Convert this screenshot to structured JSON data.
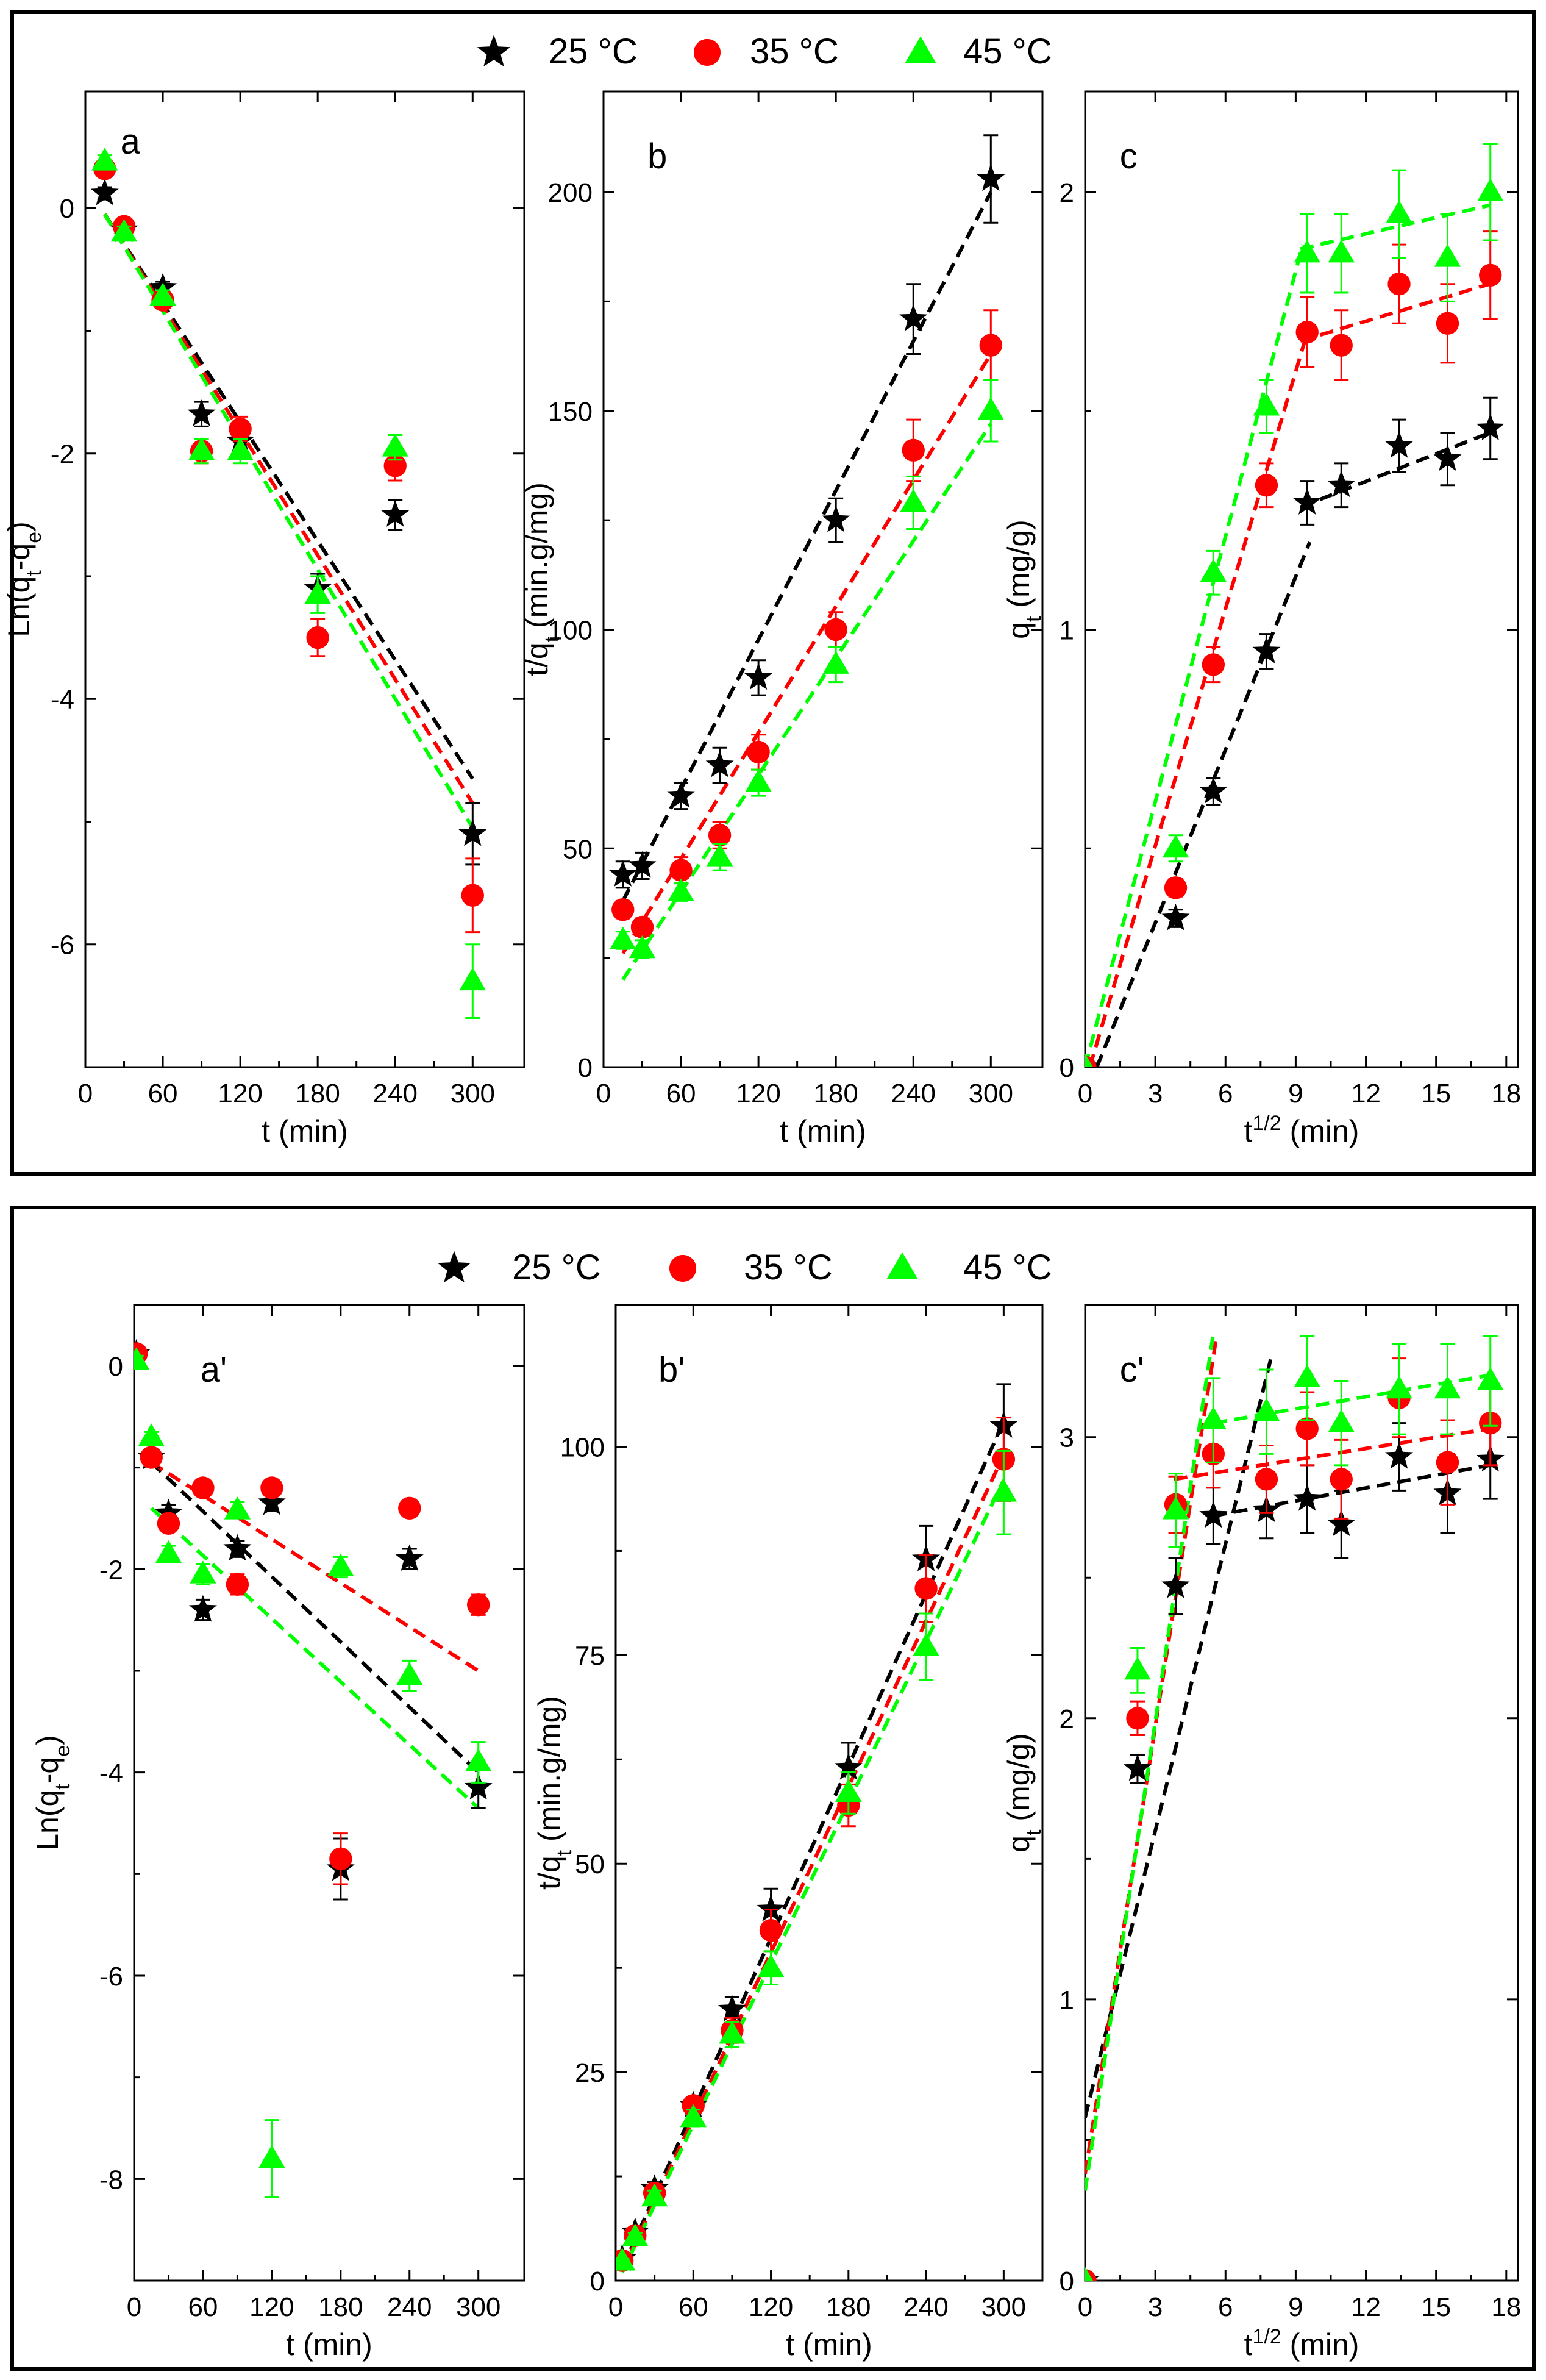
{
  "legend": [
    {
      "name": "25 °C",
      "color": "#000000",
      "marker": "star"
    },
    {
      "name": "35 °C",
      "color": "#ff0000",
      "marker": "circle"
    },
    {
      "name": "45 °C",
      "color": "#00ff00",
      "marker": "triangle"
    }
  ],
  "chart_data": [
    {
      "id": "a",
      "type": "scatter",
      "label": "a",
      "group": "top",
      "ylabel": "Ln(q<sub>t</sub>-q<sub>e</sub>)",
      "xlabel": "t (min)",
      "xlim": [
        0,
        340
      ],
      "ylim": [
        -7.0,
        0.95
      ],
      "xticks": [
        0,
        60,
        120,
        180,
        240,
        300
      ],
      "yticks": [
        0,
        -2,
        -4,
        -6
      ],
      "x": [
        15,
        30,
        60,
        90,
        120,
        180,
        240,
        300
      ],
      "series": [
        {
          "name": "25 °C",
          "values": [
            0.12,
            -0.18,
            -0.65,
            -1.68,
            -1.9,
            -3.1,
            -2.5,
            -5.1
          ],
          "err": [
            0.05,
            0.05,
            0.05,
            0.1,
            0.1,
            0.12,
            0.12,
            0.25
          ],
          "fit": [
            [
              15,
              -0.05
            ],
            [
              300,
              -4.65
            ]
          ]
        },
        {
          "name": "35 °C",
          "values": [
            0.32,
            -0.15,
            -0.75,
            -1.98,
            -1.8,
            -3.5,
            -2.1,
            -5.6
          ],
          "err": [
            0.05,
            0.05,
            0.05,
            0.1,
            0.1,
            0.15,
            0.12,
            0.3
          ],
          "fit": [
            [
              15,
              -0.05
            ],
            [
              300,
              -4.85
            ]
          ]
        },
        {
          "name": "45 °C",
          "values": [
            0.38,
            -0.2,
            -0.72,
            -1.98,
            -1.98,
            -3.15,
            -1.95,
            -6.3
          ],
          "err": [
            0.05,
            0.05,
            0.05,
            0.1,
            0.1,
            0.15,
            0.1,
            0.3
          ],
          "fit": [
            [
              15,
              -0.05
            ],
            [
              300,
              -5.05
            ]
          ]
        }
      ]
    },
    {
      "id": "b",
      "type": "scatter",
      "label": "b",
      "group": "top",
      "ylabel": "t/q<sub>t</sub> (min.g/mg)",
      "xlabel": "t (min)",
      "xlim": [
        0,
        340
      ],
      "ylim": [
        0,
        223
      ],
      "xticks": [
        0,
        60,
        120,
        180,
        240,
        300
      ],
      "yticks": [
        0,
        50,
        100,
        150,
        200
      ],
      "x": [
        15,
        30,
        60,
        90,
        120,
        180,
        240,
        300
      ],
      "series": [
        {
          "name": "25 °C",
          "values": [
            44,
            46,
            62,
            69,
            89,
            125,
            171,
            203
          ],
          "err": [
            3,
            3,
            3,
            4,
            4,
            5,
            8,
            10
          ],
          "fit": [
            [
              15,
              38
            ],
            [
              300,
              200
            ]
          ]
        },
        {
          "name": "35 °C",
          "values": [
            36,
            32,
            45,
            53,
            72,
            100,
            141,
            165
          ],
          "err": [
            2,
            2,
            3,
            3,
            4,
            4,
            7,
            8
          ],
          "fit": [
            [
              15,
              26
            ],
            [
              300,
              163
            ]
          ]
        },
        {
          "name": "45 °C",
          "values": [
            29,
            27,
            40,
            48,
            65,
            92,
            129,
            150
          ],
          "err": [
            2,
            2,
            2,
            3,
            3,
            4,
            6,
            7
          ],
          "fit": [
            [
              15,
              20
            ],
            [
              300,
              147
            ]
          ]
        }
      ]
    },
    {
      "id": "c",
      "type": "scatter",
      "label": "c",
      "group": "top",
      "ylabel": "q<sub>t</sub> (mg/g)",
      "xlabel": "t<sup>1/2</sup> (min)",
      "xlim": [
        0,
        18.5
      ],
      "ylim": [
        0,
        2.23
      ],
      "xticks": [
        0,
        3,
        6,
        9,
        12,
        15,
        18
      ],
      "yticks": [
        0,
        1,
        2
      ],
      "x": [
        0,
        3.87,
        5.48,
        7.75,
        9.49,
        10.95,
        13.42,
        15.49,
        17.32
      ],
      "series": [
        {
          "name": "25 °C",
          "values": [
            0,
            0.34,
            0.63,
            0.95,
            1.29,
            1.33,
            1.42,
            1.39,
            1.46
          ],
          "err": [
            0,
            0.02,
            0.03,
            0.04,
            0.05,
            0.05,
            0.06,
            0.06,
            0.07
          ],
          "fit": [
            [
              0.5,
              0
            ],
            [
              9.6,
              1.2
            ]
          ],
          "fit2": [
            [
              9.2,
              1.28
            ],
            [
              17.3,
              1.45
            ]
          ]
        },
        {
          "name": "35 °C",
          "values": [
            0,
            0.41,
            0.92,
            1.33,
            1.68,
            1.65,
            1.79,
            1.7,
            1.81
          ],
          "err": [
            0,
            0.02,
            0.04,
            0.05,
            0.08,
            0.08,
            0.09,
            0.09,
            0.1
          ],
          "fit": [
            [
              0.2,
              0
            ],
            [
              9.5,
              1.68
            ]
          ],
          "fit2": [
            [
              9.2,
              1.66
            ],
            [
              17.3,
              1.79
            ]
          ]
        },
        {
          "name": "45 °C",
          "values": [
            0,
            0.5,
            1.13,
            1.51,
            1.86,
            1.86,
            1.95,
            1.85,
            2.0
          ],
          "err": [
            0,
            0.03,
            0.05,
            0.06,
            0.09,
            0.09,
            0.1,
            0.1,
            0.11
          ],
          "fit": [
            [
              0,
              0
            ],
            [
              9.3,
              1.88
            ]
          ],
          "fit2": [
            [
              9.2,
              1.87
            ],
            [
              17.3,
              1.97
            ]
          ]
        }
      ]
    },
    {
      "id": "a2",
      "type": "scatter",
      "label": "a'",
      "group": "bottom",
      "ylabel": "Ln(q<sub>t</sub>-q<sub>e</sub>)",
      "xlabel": "t (min)",
      "xlim": [
        0,
        340
      ],
      "ylim": [
        -9.0,
        0.6
      ],
      "xticks": [
        0,
        60,
        120,
        180,
        240,
        300
      ],
      "yticks": [
        0,
        -2,
        -4,
        -6,
        -8
      ],
      "x": [
        2,
        15,
        30,
        60,
        90,
        120,
        180,
        240,
        300
      ],
      "series": [
        {
          "name": "25 °C",
          "values": [
            0.12,
            -0.9,
            -1.45,
            -2.4,
            -1.8,
            -1.35,
            -4.95,
            -1.9,
            -4.15
          ],
          "err": [
            0.05,
            0.05,
            0.08,
            0.1,
            0.08,
            0.08,
            0.3,
            0.1,
            0.2
          ],
          "fit": [
            [
              15,
              -0.95
            ],
            [
              300,
              -4.0
            ]
          ]
        },
        {
          "name": "35 °C",
          "values": [
            0.12,
            -0.9,
            -1.55,
            -1.2,
            -2.15,
            -1.2,
            -4.85,
            -1.4,
            -2.35
          ],
          "err": [
            0.05,
            0.05,
            0.08,
            0.08,
            0.1,
            0.08,
            0.25,
            0.08,
            0.1
          ],
          "fit": [
            [
              15,
              -0.95
            ],
            [
              300,
              -3.0
            ]
          ]
        },
        {
          "name": "45 °C",
          "values": [
            0.05,
            -0.7,
            -1.85,
            -2.05,
            -1.42,
            -7.8,
            -1.98,
            -3.05,
            -3.9
          ],
          "err": [
            0.05,
            0.05,
            0.08,
            0.1,
            0.08,
            0.38,
            0.1,
            0.15,
            0.2
          ],
          "fit": [
            [
              15,
              -1.4
            ],
            [
              300,
              -4.35
            ]
          ]
        }
      ]
    },
    {
      "id": "b2",
      "type": "scatter",
      "label": "b'",
      "group": "bottom",
      "ylabel": "t/q<sub>t</sub> (min.g/mg)",
      "xlabel": "t (min)",
      "xlim": [
        0,
        330
      ],
      "ylim": [
        0,
        117
      ],
      "xticks": [
        0,
        60,
        120,
        180,
        240,
        300
      ],
      "yticks": [
        0,
        25,
        50,
        75,
        100
      ],
      "x": [
        5,
        15,
        30,
        60,
        90,
        120,
        180,
        240,
        300
      ],
      "series": [
        {
          "name": "25 °C",
          "values": [
            2.6,
            5.8,
            11,
            21,
            32.5,
            44.5,
            61.5,
            86.5,
            102.5
          ],
          "err": [
            0.3,
            0.5,
            0.8,
            1,
            1.5,
            2.5,
            3,
            4,
            5
          ],
          "fit": [
            [
              5,
              1.5
            ],
            [
              300,
              103
            ]
          ]
        },
        {
          "name": "35 °C",
          "values": [
            2.4,
            5.4,
            10.5,
            21,
            30,
            42,
            57,
            83,
            98.5
          ],
          "err": [
            0.3,
            0.5,
            0.8,
            1,
            1.5,
            2.5,
            2.5,
            4,
            5
          ],
          "fit": [
            [
              5,
              1.2
            ],
            [
              300,
              99
            ]
          ]
        },
        {
          "name": "45 °C",
          "values": [
            2.3,
            5.2,
            10,
            19.5,
            29.5,
            37.5,
            58.5,
            76,
            94.5
          ],
          "err": [
            0.3,
            0.5,
            0.8,
            1,
            1.5,
            2,
            2.5,
            4,
            5
          ],
          "fit": [
            [
              5,
              1.0
            ],
            [
              300,
              96
            ]
          ]
        }
      ]
    },
    {
      "id": "c2",
      "type": "scatter",
      "label": "c'",
      "group": "bottom",
      "ylabel": "q<sub>t</sub> (mg/g)",
      "xlabel": "t<sup>1/2</sup> (min)",
      "xlim": [
        0,
        18.5
      ],
      "ylim": [
        0,
        3.47
      ],
      "xticks": [
        0,
        3,
        6,
        9,
        12,
        15,
        18
      ],
      "yticks": [
        0,
        1,
        2,
        3
      ],
      "x": [
        0,
        2.24,
        3.87,
        5.48,
        7.75,
        9.49,
        10.95,
        13.42,
        15.49,
        17.32
      ],
      "series": [
        {
          "name": "25 °C",
          "values": [
            0,
            1.82,
            2.47,
            2.72,
            2.74,
            2.78,
            2.69,
            2.93,
            2.8,
            2.92
          ],
          "err": [
            0,
            0.05,
            0.1,
            0.1,
            0.1,
            0.12,
            0.12,
            0.12,
            0.14,
            0.14
          ],
          "fit": [
            [
              0,
              0.58
            ],
            [
              8.0,
              3.3
            ]
          ],
          "fit2": [
            [
              5.5,
              2.72
            ],
            [
              17.3,
              2.9
            ]
          ]
        },
        {
          "name": "35 °C",
          "values": [
            0,
            2.0,
            2.76,
            2.94,
            2.85,
            3.03,
            2.85,
            3.14,
            2.91,
            3.05
          ],
          "err": [
            0,
            0.06,
            0.1,
            0.12,
            0.12,
            0.13,
            0.14,
            0.14,
            0.15,
            0.15
          ],
          "fit": [
            [
              0,
              0.38
            ],
            [
              5.6,
              3.35
            ]
          ],
          "fit2": [
            [
              3.8,
              2.85
            ],
            [
              17.3,
              3.03
            ]
          ]
        },
        {
          "name": "45 °C",
          "values": [
            0,
            2.17,
            2.74,
            3.06,
            3.09,
            3.21,
            3.05,
            3.17,
            3.17,
            3.2
          ],
          "err": [
            0,
            0.08,
            0.13,
            0.15,
            0.15,
            0.15,
            0.15,
            0.16,
            0.16,
            0.16
          ],
          "fit": [
            [
              0,
              0.32
            ],
            [
              5.5,
              3.38
            ]
          ],
          "fit2": [
            [
              5.5,
              3.05
            ],
            [
              17.3,
              3.22
            ]
          ]
        }
      ]
    }
  ]
}
